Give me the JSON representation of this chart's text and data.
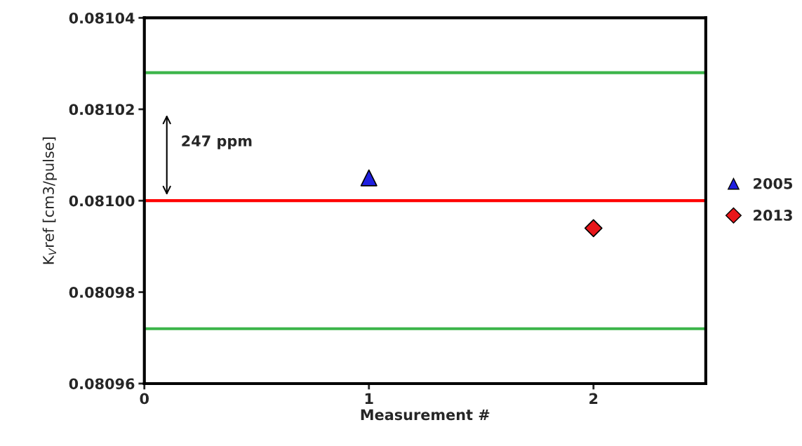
{
  "chart_data": {
    "type": "scatter",
    "xlabel": "Measurement #",
    "ylabel": "K$_{V}$ref [cm3/pulse]",
    "xlim": [
      0,
      2.5
    ],
    "xticks": [
      0,
      1,
      2
    ],
    "ylim": [
      0.08096,
      0.08104
    ],
    "yticks": [
      {
        "value": 0.08096,
        "label": "0.08096"
      },
      {
        "value": 0.08098,
        "label": "0.08098"
      },
      {
        "value": 0.081,
        "label": "0.08100"
      },
      {
        "value": 0.08102,
        "label": "0.08102"
      },
      {
        "value": 0.08104,
        "label": "0.08104"
      }
    ],
    "series": [
      {
        "name": "2005",
        "color": "#1f1fe0",
        "marker": "triangle",
        "x": [
          1
        ],
        "values": [
          0.081005
        ]
      },
      {
        "name": "2013",
        "color": "#e8161a",
        "marker": "diamond",
        "x": [
          2
        ],
        "values": [
          0.080994
        ]
      }
    ],
    "ref_lines": [
      {
        "axis": "y",
        "value": 0.081,
        "color": "#ff0000"
      },
      {
        "axis": "y",
        "value": 0.081028,
        "color": "#3cb54a"
      },
      {
        "axis": "y",
        "value": 0.080972,
        "color": "#3cb54a"
      }
    ],
    "annotations": [
      "247 ppm"
    ],
    "grid": false,
    "legend": "right"
  }
}
